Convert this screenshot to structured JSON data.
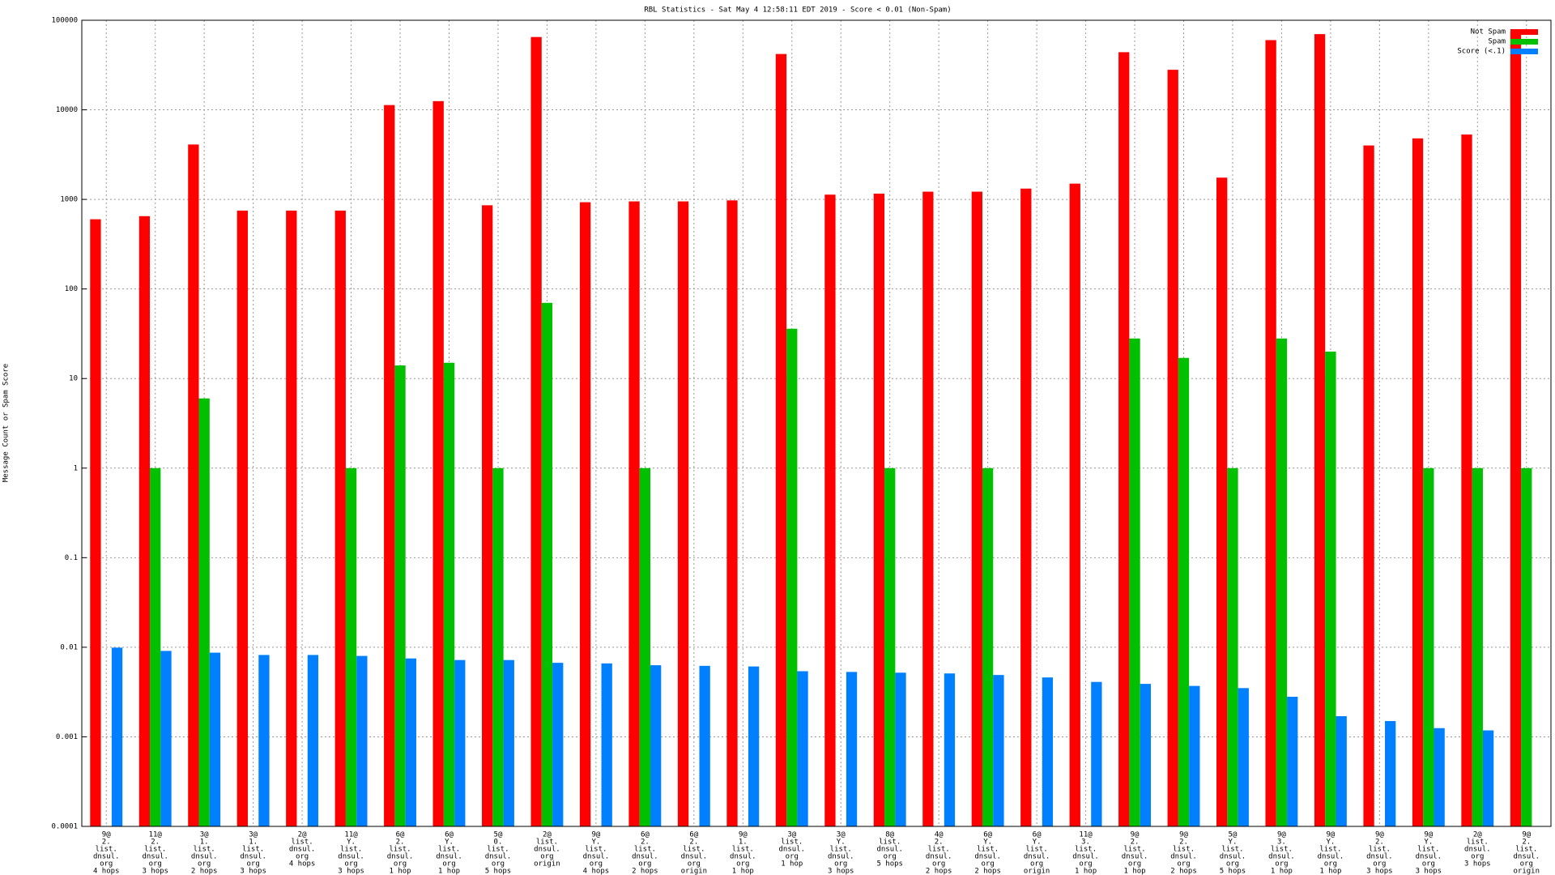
{
  "chart_data": {
    "type": "bar",
    "title": "RBL Statistics - Sat May  4 12:58:11 EDT 2019 - Score < 0.01 (Non-Spam)",
    "y_label": "Message Count or Spam Score",
    "log_scale": true,
    "grid": true,
    "legend": "top-right",
    "ylim": [
      0.0001,
      100000
    ],
    "yticks": [
      0.0001,
      0.001,
      0.01,
      0.1,
      1,
      10,
      100,
      1000,
      10000,
      100000
    ],
    "categories": [
      [
        "9@",
        "2.",
        "list.",
        "dnsul.",
        "org",
        "4 hops"
      ],
      [
        "11@",
        "2.",
        "list.",
        "dnsul.",
        "org",
        "3 hops"
      ],
      [
        "3@",
        "1.",
        "list.",
        "dnsul.",
        "org",
        "2 hops"
      ],
      [
        "3@",
        "1.",
        "list.",
        "dnsul.",
        "org",
        "3 hops"
      ],
      [
        "2@",
        "list.",
        "dnsul.",
        "org",
        "4 hops"
      ],
      [
        "11@",
        "Y.",
        "list.",
        "dnsul.",
        "org",
        "3 hops"
      ],
      [
        "6@",
        "2.",
        "list.",
        "dnsul.",
        "org",
        "1 hop"
      ],
      [
        "6@",
        "Y.",
        "list.",
        "dnsul.",
        "org",
        "1 hop"
      ],
      [
        "5@",
        "0.",
        "list.",
        "dnsul.",
        "org",
        "5 hops"
      ],
      [
        "2@",
        "list.",
        "dnsul.",
        "org",
        "origin"
      ],
      [
        "9@",
        "Y.",
        "list.",
        "dnsul.",
        "org",
        "4 hops"
      ],
      [
        "6@",
        "2.",
        "list.",
        "dnsul.",
        "org",
        "2 hops"
      ],
      [
        "6@",
        "2.",
        "list.",
        "dnsul.",
        "org",
        "origin"
      ],
      [
        "9@",
        "1.",
        "list.",
        "dnsul.",
        "org",
        "1 hop"
      ],
      [
        "3@",
        "list.",
        "dnsul.",
        "org",
        "1 hop"
      ],
      [
        "3@",
        "Y.",
        "list.",
        "dnsul.",
        "org",
        "3 hops"
      ],
      [
        "8@",
        "list.",
        "dnsul.",
        "org",
        "5 hops"
      ],
      [
        "4@",
        "2.",
        "list.",
        "dnsul.",
        "org",
        "2 hops"
      ],
      [
        "6@",
        "Y.",
        "list.",
        "dnsul.",
        "org",
        "2 hops"
      ],
      [
        "6@",
        "Y.",
        "list.",
        "dnsul.",
        "org",
        "origin"
      ],
      [
        "11@",
        "3.",
        "list.",
        "dnsul.",
        "org",
        "1 hop"
      ],
      [
        "9@",
        "2.",
        "list.",
        "dnsul.",
        "org",
        "1 hop"
      ],
      [
        "9@",
        "2.",
        "list.",
        "dnsul.",
        "org",
        "2 hops"
      ],
      [
        "5@",
        "Y.",
        "list.",
        "dnsul.",
        "org",
        "5 hops"
      ],
      [
        "9@",
        "3.",
        "list.",
        "dnsul.",
        "org",
        "1 hop"
      ],
      [
        "9@",
        "Y.",
        "list.",
        "dnsul.",
        "org",
        "1 hop"
      ],
      [
        "9@",
        "2.",
        "list.",
        "dnsul.",
        "org",
        "3 hops"
      ],
      [
        "9@",
        "Y.",
        "list.",
        "dnsul.",
        "org",
        "3 hops"
      ],
      [
        "2@",
        "list.",
        "dnsul.",
        "org",
        "3 hops"
      ],
      [
        "9@",
        "2.",
        "list.",
        "dnsul.",
        "org",
        "origin"
      ]
    ],
    "series": [
      {
        "name": "Not Spam",
        "color": "#ff0000",
        "values": [
          600,
          650,
          4100,
          750,
          750,
          750,
          11300,
          12500,
          860,
          65000,
          930,
          950,
          950,
          975,
          42000,
          1130,
          1160,
          1220,
          1220,
          1320,
          1500,
          44000,
          28000,
          1750,
          60000,
          70000,
          4000,
          4800,
          5300,
          74000
        ]
      },
      {
        "name": "Spam",
        "color": "#00c000",
        "values": [
          null,
          1,
          6,
          null,
          null,
          1,
          14,
          15,
          1,
          70,
          null,
          1,
          null,
          null,
          36,
          null,
          1,
          null,
          1,
          null,
          null,
          28,
          17,
          1,
          28,
          20,
          null,
          1,
          1,
          1
        ]
      },
      {
        "name": "Score (<.1)",
        "color": "#0080ff",
        "values": [
          0.0099,
          0.0091,
          0.0087,
          0.0082,
          0.0082,
          0.008,
          0.0075,
          0.0072,
          0.0072,
          0.0067,
          0.0066,
          0.0063,
          0.0062,
          0.0061,
          0.0054,
          0.0053,
          0.0052,
          0.0051,
          0.0049,
          0.0046,
          0.0041,
          0.0039,
          0.0037,
          0.0035,
          0.0028,
          0.0017,
          0.0015,
          0.00125,
          0.00118,
          null
        ]
      }
    ]
  }
}
